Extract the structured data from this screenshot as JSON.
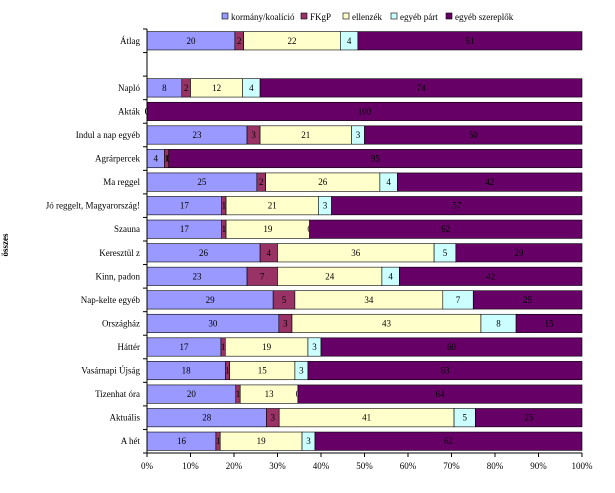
{
  "chart_data": {
    "type": "bar",
    "orientation": "horizontal",
    "stacked": "percent",
    "title": "",
    "xlabel": "",
    "ylabel": "összes",
    "xlim": [
      0,
      100
    ],
    "x_ticks": [
      "0%",
      "10%",
      "20%",
      "30%",
      "40%",
      "50%",
      "60%",
      "70%",
      "80%",
      "90%",
      "100%"
    ],
    "grid": false,
    "legend_position": "top-right",
    "categories": [
      "Átlag",
      "",
      "Napló",
      "Akták",
      "Indul a nap egyéb",
      "Agrárpercek",
      "Ma reggel",
      "Jó reggelt, Magyarország!",
      "Szauna",
      "Keresztül z",
      "Kinn, padon",
      "Nap-kelte egyéb",
      "Országház",
      "Háttér",
      "Vasárnapi Újság",
      "Tizenhat óra",
      "Aktuális",
      "A hét"
    ],
    "series": [
      {
        "name": "kormány/koalíció",
        "color": "#9999ff",
        "text_color": "#000000",
        "values": [
          20,
          null,
          8,
          0,
          23,
          4,
          25,
          17,
          17,
          26,
          23,
          29,
          30,
          17,
          18,
          20,
          28,
          16
        ]
      },
      {
        "name": "FKgP",
        "color": "#993366",
        "text_color": "#000000",
        "values": [
          2,
          null,
          2,
          0,
          3,
          1,
          2,
          1,
          1,
          4,
          7,
          5,
          3,
          1,
          1,
          1,
          3,
          1
        ]
      },
      {
        "name": "ellenzék",
        "color": "#ffffcc",
        "text_color": "#000000",
        "values": [
          22,
          null,
          12,
          0,
          21,
          0,
          26,
          21,
          19,
          36,
          24,
          34,
          43,
          19,
          15,
          13,
          41,
          19
        ]
      },
      {
        "name": "egyéb párt",
        "color": "#ccffff",
        "text_color": "#000000",
        "values": [
          4,
          null,
          4,
          0,
          3,
          0,
          4,
          3,
          0,
          5,
          4,
          7,
          8,
          3,
          3,
          0,
          5,
          3
        ]
      },
      {
        "name": "egyéb szereplők",
        "color": "#660066",
        "text_color": "#000000",
        "values": [
          51,
          null,
          74,
          100,
          50,
          95,
          42,
          57,
          62,
          29,
          42,
          25,
          15,
          60,
          63,
          64,
          25,
          62
        ]
      }
    ],
    "hidden_labels": [
      [
        null,
        null,
        null,
        null,
        null,
        null,
        null,
        null,
        null,
        null,
        null,
        null,
        null,
        null,
        null,
        null,
        null,
        null
      ],
      [
        null,
        null,
        null,
        "0",
        null,
        null,
        null,
        null,
        null,
        null,
        null,
        null,
        null,
        null,
        null,
        null,
        null,
        null
      ],
      [
        null,
        null,
        null,
        "0",
        null,
        "0",
        null,
        null,
        null,
        null,
        null,
        null,
        null,
        null,
        null,
        null,
        null,
        null
      ],
      [
        null,
        null,
        null,
        null,
        null,
        "0",
        null,
        null,
        "0",
        null,
        null,
        null,
        null,
        null,
        null,
        "0",
        null,
        null
      ],
      [
        null,
        null,
        null,
        null,
        null,
        null,
        null,
        null,
        null,
        null,
        null,
        null,
        null,
        null,
        null,
        null,
        null,
        null
      ]
    ]
  }
}
